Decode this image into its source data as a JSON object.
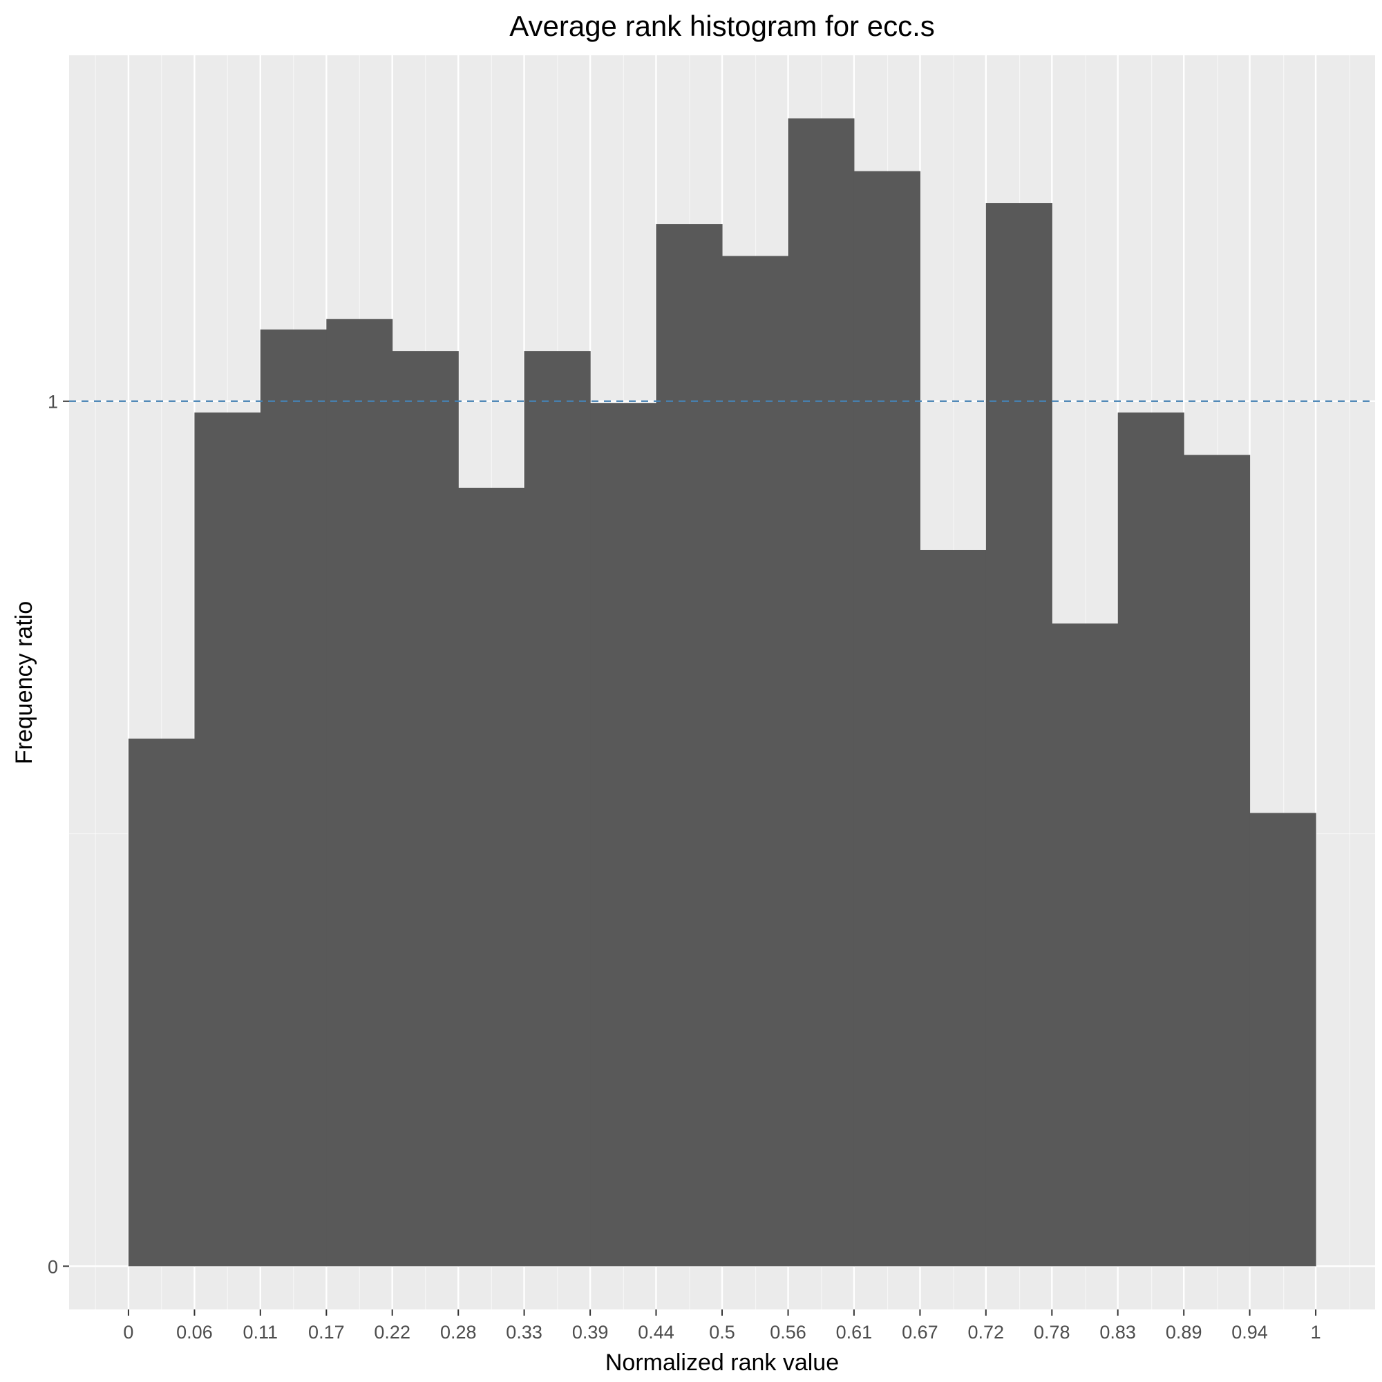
{
  "chart_data": {
    "type": "bar",
    "title": "Average rank histogram for ecc.s",
    "xlabel": "Normalized rank value",
    "ylabel": "Frequency ratio",
    "x_tick_labels": [
      "0",
      "0.06",
      "0.11",
      "0.17",
      "0.22",
      "0.28",
      "0.33",
      "0.39",
      "0.44",
      "0.5",
      "0.56",
      "0.61",
      "0.67",
      "0.72",
      "0.78",
      "0.83",
      "0.89",
      "0.94",
      "1"
    ],
    "y_tick_labels": [
      "0",
      "1"
    ],
    "xlim": [
      -0.05,
      1.05
    ],
    "ylim": [
      -0.05,
      1.4
    ],
    "grid": true,
    "reference_line": {
      "y": 1,
      "style": "dashed",
      "color": "#4682b4"
    },
    "bins": [
      {
        "x0": 0.0,
        "x1": 0.0556,
        "value": 0.61
      },
      {
        "x0": 0.0556,
        "x1": 0.1111,
        "value": 0.987
      },
      {
        "x0": 0.1111,
        "x1": 0.1667,
        "value": 1.083
      },
      {
        "x0": 0.1667,
        "x1": 0.2222,
        "value": 1.095
      },
      {
        "x0": 0.2222,
        "x1": 0.2778,
        "value": 1.058
      },
      {
        "x0": 0.2778,
        "x1": 0.3333,
        "value": 0.9
      },
      {
        "x0": 0.3333,
        "x1": 0.3889,
        "value": 1.058
      },
      {
        "x0": 0.3889,
        "x1": 0.4444,
        "value": 0.998
      },
      {
        "x0": 0.4444,
        "x1": 0.5,
        "value": 1.205
      },
      {
        "x0": 0.5,
        "x1": 0.5556,
        "value": 1.168
      },
      {
        "x0": 0.5556,
        "x1": 0.6111,
        "value": 1.327
      },
      {
        "x0": 0.6111,
        "x1": 0.6667,
        "value": 1.266
      },
      {
        "x0": 0.6667,
        "x1": 0.7222,
        "value": 0.828
      },
      {
        "x0": 0.7222,
        "x1": 0.7778,
        "value": 1.229
      },
      {
        "x0": 0.7778,
        "x1": 0.8333,
        "value": 0.743
      },
      {
        "x0": 0.8333,
        "x1": 0.8889,
        "value": 0.987
      },
      {
        "x0": 0.8889,
        "x1": 0.9444,
        "value": 0.938
      },
      {
        "x0": 0.9444,
        "x1": 1.0,
        "value": 0.524
      }
    ],
    "colors": {
      "panel_background": "#ebebeb",
      "grid_major": "#ffffff",
      "bar_fill": "#595959",
      "reference_line": "#4682b4"
    }
  }
}
